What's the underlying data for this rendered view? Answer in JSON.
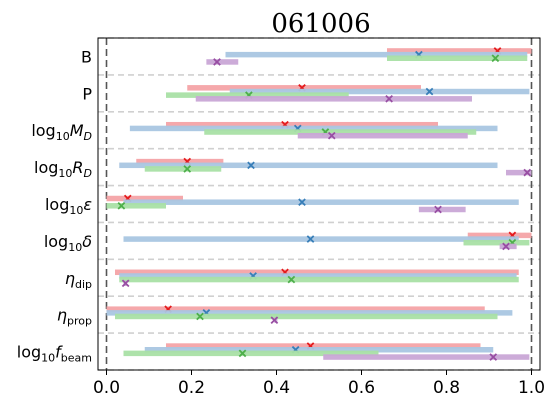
{
  "chart_data": {
    "type": "range",
    "title": "061006",
    "xlim": [
      -0.02,
      1.02
    ],
    "xticks": [
      "0.0",
      "0.2",
      "0.4",
      "0.6",
      "0.8",
      "1.0"
    ],
    "xtick_values": [
      0.0,
      0.2,
      0.4,
      0.6,
      0.8,
      1.0
    ],
    "vlines": [
      0.0,
      1.0
    ],
    "grid": "dashed horizontal separators between rows",
    "series_colors": [
      "#f4a3a6",
      "#a9c6e2",
      "#a9e0a5",
      "#c9a6d6"
    ],
    "marker_colors": [
      "#e41a1c",
      "#377eb8",
      "#4daf4a",
      "#984ea3"
    ],
    "rows": [
      {
        "label_main": "B",
        "label_sub": "",
        "label_post": "",
        "bars": [
          {
            "series": 0,
            "range": [
              0.66,
              1.0
            ],
            "marker": 0.92
          },
          {
            "series": 1,
            "range": [
              0.28,
              0.99
            ],
            "marker": 0.735
          },
          {
            "series": 2,
            "range": [
              0.66,
              0.99
            ],
            "marker": 0.915
          },
          {
            "series": 3,
            "range": [
              0.235,
              0.31
            ],
            "marker": 0.26
          }
        ]
      },
      {
        "label_main": "P",
        "label_sub": "",
        "label_post": "",
        "bars": [
          {
            "series": 0,
            "range": [
              0.19,
              0.74
            ],
            "marker": 0.46
          },
          {
            "series": 1,
            "range": [
              0.29,
              0.995
            ],
            "marker": 0.76
          },
          {
            "series": 2,
            "range": [
              0.14,
              0.57
            ],
            "marker": 0.335
          },
          {
            "series": 3,
            "range": [
              0.21,
              0.86
            ],
            "marker": 0.665
          }
        ]
      },
      {
        "label_main": "log",
        "label_sub": "10",
        "label_post": "M_D",
        "bars": [
          {
            "series": 0,
            "range": [
              0.14,
              0.78
            ],
            "marker": 0.42
          },
          {
            "series": 1,
            "range": [
              0.055,
              0.92
            ],
            "marker": 0.45
          },
          {
            "series": 2,
            "range": [
              0.23,
              0.87
            ],
            "marker": 0.515
          },
          {
            "series": 3,
            "range": [
              0.45,
              0.85
            ],
            "marker": 0.53
          }
        ]
      },
      {
        "label_main": "log",
        "label_sub": "10",
        "label_post": "R_D",
        "bars": [
          {
            "series": 0,
            "range": [
              0.07,
              0.275
            ],
            "marker": 0.19
          },
          {
            "series": 1,
            "range": [
              0.03,
              0.92
            ],
            "marker": 0.34
          },
          {
            "series": 2,
            "range": [
              0.09,
              0.27
            ],
            "marker": 0.19
          },
          {
            "series": 3,
            "range": [
              0.94,
              1.0
            ],
            "marker": 0.99
          }
        ]
      },
      {
        "label_main": "log",
        "label_sub": "10",
        "label_post": "ε",
        "bars": [
          {
            "series": 0,
            "range": [
              0.0,
              0.18
            ],
            "marker": 0.05
          },
          {
            "series": 1,
            "range": [
              0.04,
              0.97
            ],
            "marker": 0.46
          },
          {
            "series": 2,
            "range": [
              0.0,
              0.14
            ],
            "marker": 0.035
          },
          {
            "series": 3,
            "range": [
              0.735,
              0.845
            ],
            "marker": 0.78
          }
        ]
      },
      {
        "label_main": "log",
        "label_sub": "10",
        "label_post": "δ",
        "bars": [
          {
            "series": 0,
            "range": [
              0.85,
              1.0
            ],
            "marker": 0.955
          },
          {
            "series": 1,
            "range": [
              0.04,
              0.97
            ],
            "marker": 0.48
          },
          {
            "series": 2,
            "range": [
              0.84,
              0.995
            ],
            "marker": 0.955
          },
          {
            "series": 3,
            "range": [
              0.925,
              0.965
            ],
            "marker": 0.94
          }
        ]
      },
      {
        "label_main": "η",
        "label_sub": "dip",
        "label_post": "",
        "bars": [
          {
            "series": 0,
            "range": [
              0.02,
              0.97
            ],
            "marker": 0.42
          },
          {
            "series": 1,
            "range": [
              0.03,
              0.965
            ],
            "marker": 0.345
          },
          {
            "series": 2,
            "range": [
              0.03,
              0.97
            ],
            "marker": 0.435
          },
          {
            "series": 3,
            "range": [
              0.04,
              0.045
            ],
            "marker": 0.045
          }
        ]
      },
      {
        "label_main": "η",
        "label_sub": "prop",
        "label_post": "",
        "bars": [
          {
            "series": 0,
            "range": [
              0.0,
              0.89
            ],
            "marker": 0.145
          },
          {
            "series": 1,
            "range": [
              0.0,
              0.955
            ],
            "marker": 0.235
          },
          {
            "series": 2,
            "range": [
              0.02,
              0.92
            ],
            "marker": 0.22
          },
          {
            "series": 3,
            "range": [
              0.395,
              0.4
            ],
            "marker": 0.395
          }
        ]
      },
      {
        "label_main": "log",
        "label_sub": "10",
        "label_post": "f_beam",
        "bars": [
          {
            "series": 0,
            "range": [
              0.14,
              0.88
            ],
            "marker": 0.48
          },
          {
            "series": 1,
            "range": [
              0.09,
              0.91
            ],
            "marker": 0.445
          },
          {
            "series": 2,
            "range": [
              0.04,
              0.64
            ],
            "marker": 0.32
          },
          {
            "series": 3,
            "range": [
              0.51,
              0.995
            ],
            "marker": 0.91
          }
        ]
      }
    ]
  }
}
